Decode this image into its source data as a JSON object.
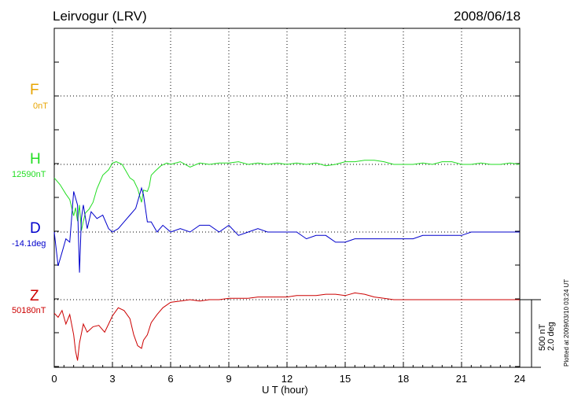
{
  "header": {
    "station": "Leirvogur (LRV)",
    "date": "2008/06/18"
  },
  "footer": {
    "plotted": "Plotted at 2009/03/10 03:24 UT"
  },
  "scale": {
    "nt": "500 nT",
    "deg": "2.0 deg"
  },
  "colors": {
    "F": "#e8a400",
    "H": "#22dd22",
    "D": "#0000cc",
    "Z": "#cc0000",
    "grid": "#000000"
  },
  "chart_data": {
    "type": "line",
    "xlabel": "U T (hour)",
    "xlim": [
      0,
      24
    ],
    "xticks": [
      "0",
      "3",
      "6",
      "9",
      "12",
      "15",
      "18",
      "21",
      "24"
    ],
    "scale_nT_per_bar": 500,
    "scale_deg_per_bar": 2.0,
    "series": [
      {
        "name": "F",
        "baseline_label": "0nT",
        "x": [],
        "y": []
      },
      {
        "name": "H",
        "baseline_label": "12590nT",
        "x": [
          0.0,
          0.3,
          0.6,
          0.8,
          1.0,
          1.1,
          1.2,
          1.3,
          1.4,
          1.5,
          1.6,
          1.8,
          2.0,
          2.2,
          2.5,
          2.8,
          3.0,
          3.2,
          3.5,
          3.7,
          3.9,
          4.1,
          4.3,
          4.5,
          4.6,
          4.8,
          4.9,
          5.0,
          5.2,
          5.5,
          5.8,
          6.0,
          6.5,
          7.0,
          7.5,
          8.0,
          8.5,
          9.0,
          9.5,
          10.0,
          10.5,
          11.0,
          11.5,
          12.0,
          12.5,
          13.0,
          13.5,
          14.0,
          14.5,
          15.0,
          15.5,
          16.0,
          16.5,
          17.0,
          17.5,
          18.0,
          18.5,
          19.0,
          19.5,
          20.0,
          20.5,
          21.0,
          21.5,
          22.0,
          22.5,
          23.0,
          23.5,
          24.0
        ],
        "y": [
          -100,
          -150,
          -220,
          -260,
          -380,
          -320,
          -420,
          -300,
          -490,
          -420,
          -360,
          -330,
          -280,
          -180,
          -80,
          -40,
          10,
          20,
          0,
          -50,
          -100,
          -120,
          -180,
          -280,
          -190,
          -200,
          -160,
          -80,
          -50,
          -10,
          10,
          0,
          20,
          -20,
          10,
          0,
          10,
          10,
          20,
          0,
          10,
          0,
          10,
          0,
          10,
          0,
          10,
          -10,
          0,
          20,
          20,
          30,
          30,
          20,
          0,
          0,
          0,
          10,
          0,
          20,
          20,
          0,
          0,
          10,
          0,
          0,
          10,
          0
        ]
      },
      {
        "name": "D",
        "baseline_label": "-14.1deg",
        "x": [
          0.0,
          0.2,
          0.4,
          0.6,
          0.8,
          1.0,
          1.2,
          1.3,
          1.4,
          1.5,
          1.7,
          1.9,
          2.2,
          2.5,
          2.8,
          3.0,
          3.3,
          3.6,
          3.9,
          4.2,
          4.5,
          4.6,
          4.8,
          5.0,
          5.3,
          5.6,
          6.0,
          6.5,
          7.0,
          7.5,
          8.0,
          8.5,
          9.0,
          9.5,
          10.0,
          10.5,
          11.0,
          11.5,
          12.0,
          12.5,
          13.0,
          13.5,
          14.0,
          14.5,
          15.0,
          15.5,
          16.0,
          16.5,
          17.0,
          17.5,
          18.0,
          18.5,
          19.0,
          19.5,
          20.0,
          20.5,
          21.0,
          21.5,
          22.0,
          22.5,
          23.0,
          23.5,
          24.0
        ],
        "y": [
          0,
          -1.0,
          -0.6,
          -0.2,
          -0.3,
          1.2,
          0.8,
          -1.2,
          0.4,
          0.8,
          0.1,
          0.6,
          0.4,
          0.5,
          0.1,
          0.0,
          0.1,
          0.3,
          0.5,
          0.7,
          1.3,
          1.1,
          0.3,
          0.3,
          0.0,
          0.2,
          0.0,
          0.1,
          0.0,
          0.2,
          0.2,
          0.0,
          0.2,
          -0.1,
          0.0,
          0.1,
          0.0,
          0.0,
          0.0,
          0.0,
          -0.2,
          -0.1,
          -0.1,
          -0.3,
          -0.3,
          -0.2,
          -0.2,
          -0.2,
          -0.2,
          -0.2,
          -0.2,
          -0.2,
          -0.1,
          -0.1,
          -0.1,
          -0.1,
          -0.1,
          0.0,
          0.0,
          0.0,
          0.0,
          0.0,
          0.0
        ]
      },
      {
        "name": "Z",
        "baseline_label": "50180nT",
        "x": [
          0.0,
          0.2,
          0.4,
          0.6,
          0.8,
          1.0,
          1.1,
          1.2,
          1.3,
          1.5,
          1.7,
          2.0,
          2.3,
          2.6,
          2.8,
          3.0,
          3.3,
          3.6,
          3.9,
          4.1,
          4.3,
          4.5,
          4.6,
          4.8,
          5.0,
          5.3,
          5.6,
          6.0,
          6.5,
          7.0,
          7.5,
          8.0,
          8.5,
          9.0,
          9.5,
          10.0,
          10.5,
          11.0,
          11.5,
          12.0,
          12.5,
          13.0,
          13.5,
          14.0,
          14.5,
          15.0,
          15.5,
          16.0,
          16.5,
          17.0,
          17.5,
          18.0,
          18.5,
          19.0,
          19.5,
          20.0,
          20.5,
          21.0,
          21.5,
          22.0,
          22.5,
          23.0,
          23.5,
          24.0
        ],
        "y": [
          -100,
          -130,
          -80,
          -180,
          -110,
          -260,
          -380,
          -450,
          -320,
          -180,
          -240,
          -200,
          -190,
          -240,
          -180,
          -120,
          -60,
          -80,
          -140,
          -260,
          -340,
          -360,
          -300,
          -260,
          -170,
          -110,
          -60,
          -20,
          -10,
          0,
          -10,
          0,
          0,
          10,
          10,
          10,
          20,
          20,
          20,
          20,
          30,
          30,
          30,
          40,
          40,
          30,
          50,
          40,
          20,
          10,
          0,
          0,
          0,
          0,
          0,
          0,
          0,
          0,
          0,
          0,
          0,
          0,
          0,
          0
        ]
      }
    ]
  }
}
